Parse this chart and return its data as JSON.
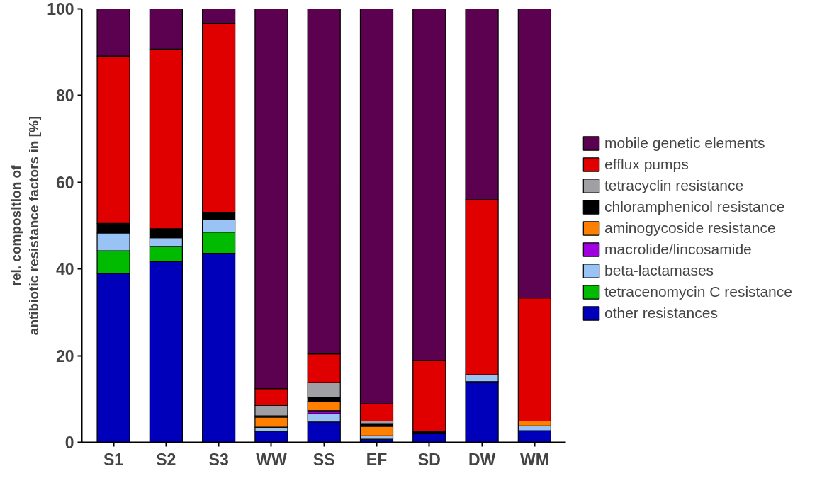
{
  "chart_data": {
    "type": "bar",
    "stacked": true,
    "ylabel": "rel. composition of\nantibiotic resistance factors in [%]",
    "categories": [
      "S1",
      "S2",
      "S3",
      "WW",
      "SS",
      "EF",
      "SD",
      "DW",
      "WM"
    ],
    "ylim": [
      0,
      100
    ],
    "yticks": [
      0,
      20,
      40,
      60,
      80,
      100
    ],
    "grid": false,
    "legend": "right",
    "series": [
      {
        "name": "other resistances",
        "color": "#0000bb",
        "values": [
          39.0,
          41.7,
          43.6,
          2.5,
          4.7,
          0.7,
          2.1,
          14.0,
          2.7
        ]
      },
      {
        "name": "tetracenomycin C resistance",
        "color": "#00bb00",
        "values": [
          5.2,
          3.5,
          4.9,
          0,
          0,
          0,
          0,
          0,
          0
        ]
      },
      {
        "name": "beta-lactamases",
        "color": "#99c2f5",
        "values": [
          4.1,
          2.0,
          3.0,
          1.0,
          1.9,
          0.8,
          0,
          1.6,
          1.1
        ]
      },
      {
        "name": "macrolide/lincosamide",
        "color": "#a000e0",
        "values": [
          0,
          0,
          0,
          0,
          0.7,
          0,
          0,
          0,
          0
        ]
      },
      {
        "name": "aminogycoside resistance",
        "color": "#ff8000",
        "values": [
          0,
          0,
          0,
          2.3,
          2.2,
          2.2,
          0,
          0,
          1.1
        ]
      },
      {
        "name": "chloramphenicol resistance",
        "color": "#000000",
        "values": [
          2.2,
          2.1,
          1.6,
          0.3,
          0.8,
          0.6,
          0.5,
          0,
          0
        ]
      },
      {
        "name": "tetracyclin resistance",
        "color": "#a0a0a4",
        "values": [
          0,
          0,
          0,
          2.4,
          3.5,
          0.6,
          0,
          0,
          0
        ]
      },
      {
        "name": "efflux pumps",
        "color": "#e00000",
        "values": [
          38.6,
          41.4,
          43.5,
          3.9,
          6.6,
          4.0,
          16.3,
          40.4,
          28.4
        ]
      },
      {
        "name": "mobile genetic elements",
        "color": "#5c0050",
        "values": [
          10.9,
          9.3,
          3.4,
          87.6,
          79.6,
          91.1,
          81.1,
          44.0,
          66.7
        ]
      }
    ]
  }
}
